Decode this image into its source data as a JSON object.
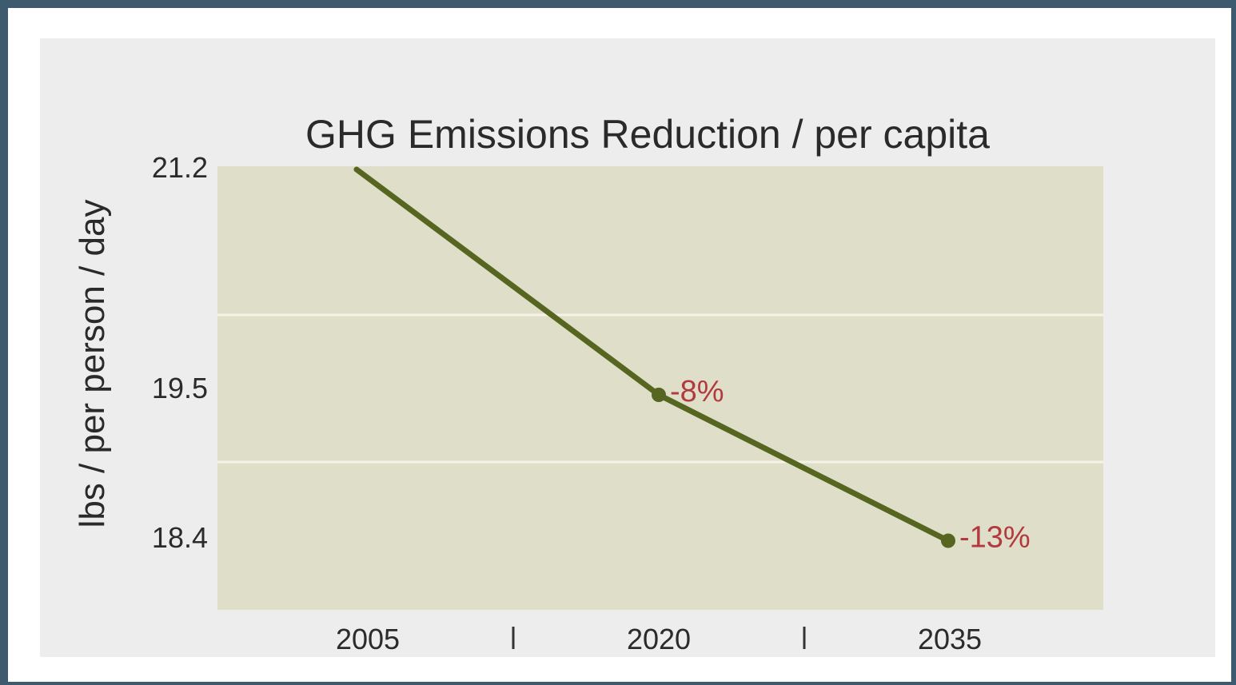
{
  "chart_data": {
    "type": "line",
    "title": "GHG Emissions Reduction / per capita",
    "ylabel": "lbs / per person / day",
    "xlabel": "",
    "categories": [
      "2005",
      "2020",
      "2035"
    ],
    "values": [
      21.2,
      19.5,
      18.4
    ],
    "ytick_labels": [
      "21.2",
      "19.5",
      "18.4"
    ],
    "ylim": [
      17.6,
      21.2
    ],
    "grid": true,
    "annotations": [
      {
        "category": "2020",
        "text": "-8%"
      },
      {
        "category": "2035",
        "text": "-13%"
      }
    ],
    "colors": {
      "line": "#56651f",
      "plot_background": "#dfdec9",
      "annotation": "#b23a3f",
      "gridline": "#f4f3e6"
    }
  }
}
